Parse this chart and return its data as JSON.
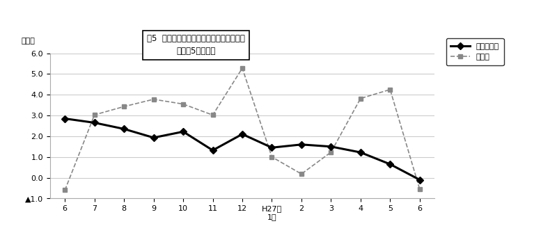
{
  "x_labels": [
    "6",
    "7",
    "8",
    "9",
    "10",
    "11",
    "12",
    "H27年\n1月",
    "2",
    "3",
    "4",
    "5",
    "6"
  ],
  "x_positions": [
    0,
    1,
    2,
    3,
    4,
    5,
    6,
    7,
    8,
    9,
    10,
    11,
    12
  ],
  "series1_name": "調査産業計",
  "series1_values": [
    2.85,
    2.65,
    2.35,
    1.93,
    2.22,
    1.32,
    2.1,
    1.45,
    1.6,
    1.5,
    1.22,
    0.65,
    -0.1
  ],
  "series2_name": "製造業",
  "series2_values": [
    -0.6,
    3.03,
    3.43,
    3.78,
    3.55,
    3.02,
    5.28,
    1.0,
    0.18,
    1.23,
    3.82,
    4.25,
    -0.55
  ],
  "ylim": [
    -1.0,
    6.0
  ],
  "yticks": [
    -1.0,
    0.0,
    1.0,
    2.0,
    3.0,
    4.0,
    5.0,
    6.0
  ],
  "ytick_labels": [
    "▲1.0",
    "0.0",
    "1.0",
    "2.0",
    "3.0",
    "4.0",
    "5.0",
    "6.0"
  ],
  "ylabel": "（％）",
  "title_line1": "囵5  常用労働者数の推移（対前年同月比）",
  "title_line2": "－規檁5人以上－",
  "series1_color": "#000000",
  "series2_color": "#888888",
  "background_color": "#ffffff",
  "grid_color": "#cccccc"
}
